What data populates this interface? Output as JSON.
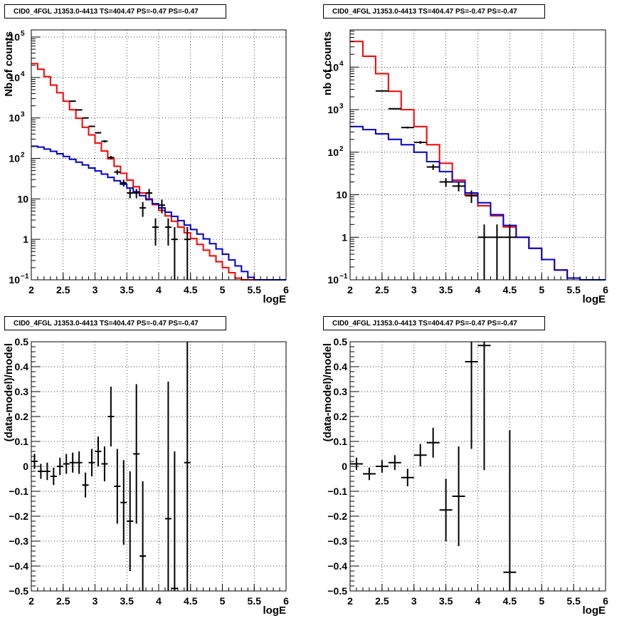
{
  "chart_data": [
    {
      "type": "histogram+errorbar",
      "title": "CID0_4FGL J1353.0-4413 TS=404.47 PS=-0.47 PS=-0.47",
      "xlabel": "logE",
      "ylabel": "Nb of counts",
      "xlim": [
        2,
        6
      ],
      "ylim": [
        0.1,
        150000
      ],
      "yscale": "log",
      "grid": true,
      "xticks": [
        "2",
        "2.5",
        "3",
        "3.5",
        "4",
        "4.5",
        "5",
        "5.5",
        "6"
      ],
      "yticks": [
        {
          "v": 0.1,
          "t": "10",
          "e": "−1"
        },
        {
          "v": 1,
          "t": "1",
          "e": ""
        },
        {
          "v": 10,
          "t": "10",
          "e": ""
        },
        {
          "v": 100,
          "t": "10",
          "e": "2"
        },
        {
          "v": 1000,
          "t": "10",
          "e": "3"
        },
        {
          "v": 10000,
          "t": "10",
          "e": "4"
        },
        {
          "v": 100000,
          "t": "10",
          "e": "5"
        }
      ],
      "bin_width": 0.1,
      "series": [
        {
          "role": "model-total",
          "color": "#ff0000",
          "bin_edges_start": 2.0,
          "values": [
            22000,
            16000,
            10500,
            6500,
            4200,
            2600,
            1600,
            980,
            590,
            380,
            240,
            152,
            98,
            64,
            43,
            29,
            20,
            14,
            10,
            7.2,
            5.2,
            3.8,
            2.8,
            2.0,
            1.45,
            1.05,
            0.75,
            0.54,
            0.39,
            0.28,
            0.2,
            0.15,
            0.11,
            0.1,
            0.1,
            0.1,
            0.1,
            0.1,
            0.1,
            0.1
          ]
        },
        {
          "role": "model-background",
          "color": "#0000cc",
          "bin_edges_start": 2.0,
          "values": [
            200,
            190,
            170,
            150,
            130,
            112,
            95,
            81,
            69,
            58,
            49,
            41,
            34,
            28,
            23,
            18.5,
            15,
            12,
            9.6,
            7.6,
            6.0,
            4.7,
            3.7,
            2.9,
            2.25,
            1.75,
            1.35,
            1.03,
            0.78,
            0.58,
            0.43,
            0.31,
            0.22,
            0.16,
            0.115,
            0.1,
            0.1,
            0.1,
            0.1,
            0.1
          ]
        },
        {
          "role": "data",
          "color": "#000000",
          "x": [
            2.65,
            2.75,
            2.85,
            2.95,
            3.05,
            3.15,
            3.25,
            3.35,
            3.45,
            3.55,
            3.65,
            3.75,
            3.85,
            3.95,
            4.05,
            4.15,
            4.25,
            4.45
          ],
          "y": [
            2600,
            1580,
            1000,
            620,
            430,
            265,
            105,
            46,
            25,
            14,
            14,
            6,
            14,
            2,
            7,
            2,
            1,
            1
          ],
          "yerr_lo": [
            50,
            40,
            31,
            25,
            20,
            16,
            10,
            6.5,
            4.8,
            3.6,
            3.6,
            2.4,
            3.6,
            1.3,
            2.6,
            1.3,
            0.9,
            0.9
          ],
          "yerr_hi": [
            50,
            40,
            31,
            25,
            20,
            16,
            10,
            6.5,
            4.8,
            3.6,
            3.6,
            2.4,
            3.6,
            1.3,
            2.6,
            1.3,
            1.0,
            1.0
          ]
        }
      ]
    },
    {
      "type": "histogram+errorbar",
      "title": "CID0_4FGL J1353.0-4413 TS=404.47 PS=-0.47 PS=-0.47",
      "xlabel": "logE",
      "ylabel": "nb of counts",
      "xlim": [
        2,
        6
      ],
      "ylim": [
        0.1,
        75000
      ],
      "yscale": "log",
      "grid": true,
      "xticks": [
        "2",
        "2.5",
        "3",
        "3.5",
        "4",
        "4.5",
        "5",
        "5.5",
        "6"
      ],
      "yticks": [
        {
          "v": 0.1,
          "t": "10",
          "e": "−1"
        },
        {
          "v": 1,
          "t": "1",
          "e": ""
        },
        {
          "v": 10,
          "t": "10",
          "e": ""
        },
        {
          "v": 100,
          "t": "10",
          "e": "2"
        },
        {
          "v": 1000,
          "t": "10",
          "e": "3"
        },
        {
          "v": 10000,
          "t": "10",
          "e": "4"
        }
      ],
      "bin_width": 0.2,
      "series": [
        {
          "role": "model-total",
          "color": "#ff0000",
          "bin_edges_start": 2.0,
          "values": [
            40000,
            18000,
            7000,
            2700,
            1000,
            400,
            150,
            55,
            22,
            10,
            5.5,
            3.2,
            1.75,
            1.0,
            0.55,
            0.3,
            0.17,
            0.11,
            0.1,
            0.1
          ]
        },
        {
          "role": "model-background",
          "color": "#0000cc",
          "bin_edges_start": 2.0,
          "values": [
            400,
            340,
            270,
            200,
            150,
            100,
            60,
            35,
            20,
            11,
            6.5,
            3.4,
            1.9,
            1.0,
            0.55,
            0.3,
            0.17,
            0.11,
            0.1,
            0.1
          ]
        },
        {
          "role": "data",
          "color": "#000000",
          "x": [
            2.5,
            2.7,
            2.9,
            3.1,
            3.3,
            3.5,
            3.7,
            3.9,
            4.1,
            4.3,
            4.5
          ],
          "y": [
            2750,
            1050,
            380,
            170,
            45,
            20,
            16,
            9.5,
            1.0,
            1.0,
            1.0
          ],
          "yerr_lo": [
            52,
            32,
            19,
            13,
            6.7,
            4.5,
            4,
            3.1,
            0.9,
            0.9,
            0.9
          ],
          "yerr_hi": [
            52,
            32,
            19,
            13,
            6.7,
            4.5,
            4,
            3.1,
            1.0,
            1.0,
            1.0
          ]
        }
      ]
    },
    {
      "type": "errorbar",
      "title": "CID0_4FGL J1353.0-4413 TS=404.47 PS=-0.47 PS=-0.47",
      "xlabel": "logE",
      "ylabel": "(data-model)/model",
      "xlim": [
        2,
        6
      ],
      "ylim": [
        -0.5,
        0.5
      ],
      "grid": true,
      "xticks": [
        "2",
        "2.5",
        "3",
        "3.5",
        "4",
        "4.5",
        "5",
        "5.5",
        "6"
      ],
      "yticks": [
        "−0.5",
        "−0.4",
        "−0.3",
        "−0.2",
        "−0.1",
        "0",
        "0.1",
        "0.2",
        "0.3",
        "0.4",
        "0.5"
      ],
      "bin_width": 0.1,
      "series": [
        {
          "role": "residual",
          "color": "#000000",
          "x": [
            2.05,
            2.15,
            2.25,
            2.35,
            2.45,
            2.55,
            2.65,
            2.75,
            2.85,
            2.95,
            3.05,
            3.15,
            3.25,
            3.35,
            3.45,
            3.55,
            3.65,
            3.75,
            4.15,
            4.25,
            4.45
          ],
          "y": [
            0.02,
            -0.02,
            -0.02,
            -0.04,
            0.0,
            0.01,
            0.015,
            0.015,
            -0.075,
            0.015,
            0.06,
            0.01,
            0.2,
            -0.08,
            -0.145,
            -0.22,
            0.05,
            -0.36,
            -0.21,
            -0.49,
            0.015
          ],
          "yerr": [
            0.03,
            0.03,
            0.035,
            0.035,
            0.035,
            0.04,
            0.04,
            0.045,
            0.05,
            0.055,
            0.06,
            0.07,
            0.12,
            0.15,
            0.17,
            0.2,
            0.28,
            0.3,
            0.55,
            0.55,
            0.6
          ]
        }
      ]
    },
    {
      "type": "errorbar",
      "title": "CID0_4FGL J1353.0-4413 TS=404.47 PS=-0.47 PS=-0.47",
      "xlabel": "logE",
      "ylabel": "(data-model)/model",
      "xlim": [
        2,
        6
      ],
      "ylim": [
        -0.5,
        0.5
      ],
      "grid": true,
      "xticks": [
        "2",
        "2.5",
        "3",
        "3.5",
        "4",
        "4.5",
        "5",
        "5.5",
        "6"
      ],
      "yticks": [
        "−0.5",
        "−0.4",
        "−0.3",
        "−0.2",
        "−0.1",
        "0",
        "0.1",
        "0.2",
        "0.3",
        "0.4",
        "0.5"
      ],
      "bin_width": 0.2,
      "series": [
        {
          "role": "residual",
          "color": "#000000",
          "x": [
            2.1,
            2.3,
            2.5,
            2.7,
            2.9,
            3.1,
            3.3,
            3.5,
            3.7,
            3.9,
            4.1,
            4.5
          ],
          "y": [
            0.01,
            -0.03,
            0.0,
            0.015,
            -0.045,
            0.045,
            0.095,
            -0.175,
            -0.12,
            0.42,
            0.485,
            -0.425
          ],
          "yerr": [
            0.025,
            0.025,
            0.025,
            0.03,
            0.035,
            0.045,
            0.06,
            0.125,
            0.2,
            0.35,
            0.5,
            0.57
          ]
        }
      ]
    }
  ]
}
